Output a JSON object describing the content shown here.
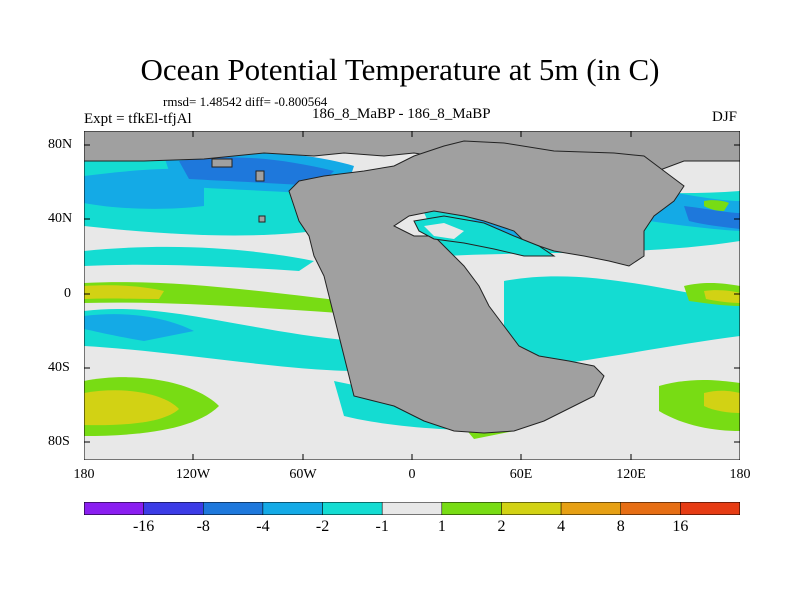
{
  "title": "Ocean Potential Temperature at 5m (in C)",
  "stats": "rmsd= 1.48542 diff= -0.800564",
  "experiment": "Expt = tfkEl-tfjAl",
  "subtitle": "186_8_MaBP - 186_8_MaBP",
  "season": "DJF",
  "y_axis_labels": [
    "80N",
    "40N",
    "0",
    "40S",
    "80S"
  ],
  "x_axis_labels": [
    "180",
    "120W",
    "60W",
    "0",
    "60E",
    "120E",
    "180"
  ],
  "colorbar": {
    "colors": [
      "#8a1ef0",
      "#3c3ce6",
      "#1e78dc",
      "#14aae6",
      "#14dcd2",
      "#e8e8e8",
      "#78dc14",
      "#d2d214",
      "#e6a014",
      "#e66e14",
      "#e63c14"
    ],
    "labels": [
      "-16",
      "-8",
      "-4",
      "-2",
      "-1",
      "1",
      "2",
      "4",
      "8",
      "16"
    ]
  },
  "colors": {
    "land": "#a0a0a0",
    "neutral": "#e8e8e8"
  }
}
